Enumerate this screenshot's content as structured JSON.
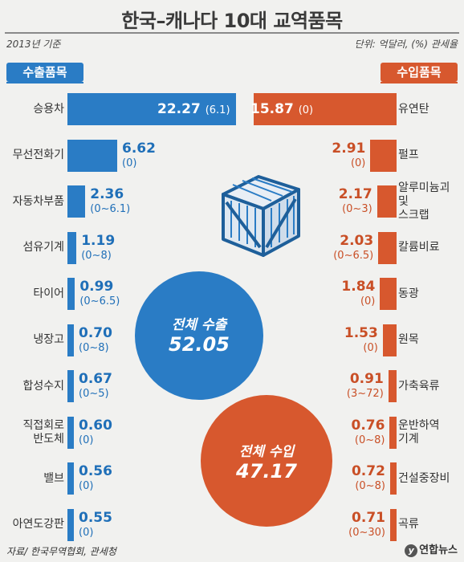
{
  "header": {
    "title": "한국–캐나다 10대 교역품목",
    "basis": "2013년 기준",
    "unit": "단위: 억달러, (%) 관세율"
  },
  "badges": {
    "export": "수출품목",
    "import": "수입품목"
  },
  "totals": {
    "export_label": "전체 수출",
    "export_value": "52.05",
    "import_label": "전체 수입",
    "import_value": "47.17"
  },
  "footer": {
    "source": "자료/ 한국무역협회, 관세청",
    "brand": "연합뉴스",
    "brand_logo": "y"
  },
  "colors": {
    "export": "#2a7cc5",
    "import": "#d7582e"
  },
  "icons": {
    "crate": "crate-icon"
  },
  "chart_data": [
    {
      "type": "bar",
      "series_role": "export",
      "categories": [
        "승용차",
        "무선전화기",
        "자동차부품",
        "섬유기계",
        "타이어",
        "냉장고",
        "합성수지",
        "직접회로 반도체",
        "밸브",
        "아연도강판"
      ],
      "values": [
        22.27,
        6.62,
        2.36,
        1.19,
        0.99,
        0.7,
        0.67,
        0.6,
        0.56,
        0.55
      ],
      "value_labels": [
        "22.27",
        "6.62",
        "2.36",
        "1.19",
        "0.99",
        "0.70",
        "0.67",
        "0.60",
        "0.56",
        "0.55"
      ],
      "tariffs": [
        "(6.1)",
        "(0)",
        "(0~6.1)",
        "(0~8)",
        "(0~6.5)",
        "(0~8)",
        "(0~5)",
        "(0)",
        "(0)",
        "(0)"
      ]
    },
    {
      "type": "bar",
      "series_role": "import",
      "categories": [
        "유연탄",
        "펄프",
        "알루미늄괴 및 스크랩",
        "칼륨비료",
        "동광",
        "원목",
        "가축육류",
        "운반하역 기계",
        "건설중장비",
        "곡류"
      ],
      "values": [
        15.87,
        2.91,
        2.17,
        2.03,
        1.84,
        1.53,
        0.91,
        0.76,
        0.72,
        0.71
      ],
      "value_labels": [
        "15.87",
        "2.91",
        "2.17",
        "2.03",
        "1.84",
        "1.53",
        "0.91",
        "0.76",
        "0.72",
        "0.71"
      ],
      "tariffs": [
        "(0)",
        "(0)",
        "(0~3)",
        "(0~6.5)",
        "(0)",
        "(0)",
        "(3~72)",
        "(0~8)",
        "(0~8)",
        "(0~30)"
      ]
    }
  ]
}
